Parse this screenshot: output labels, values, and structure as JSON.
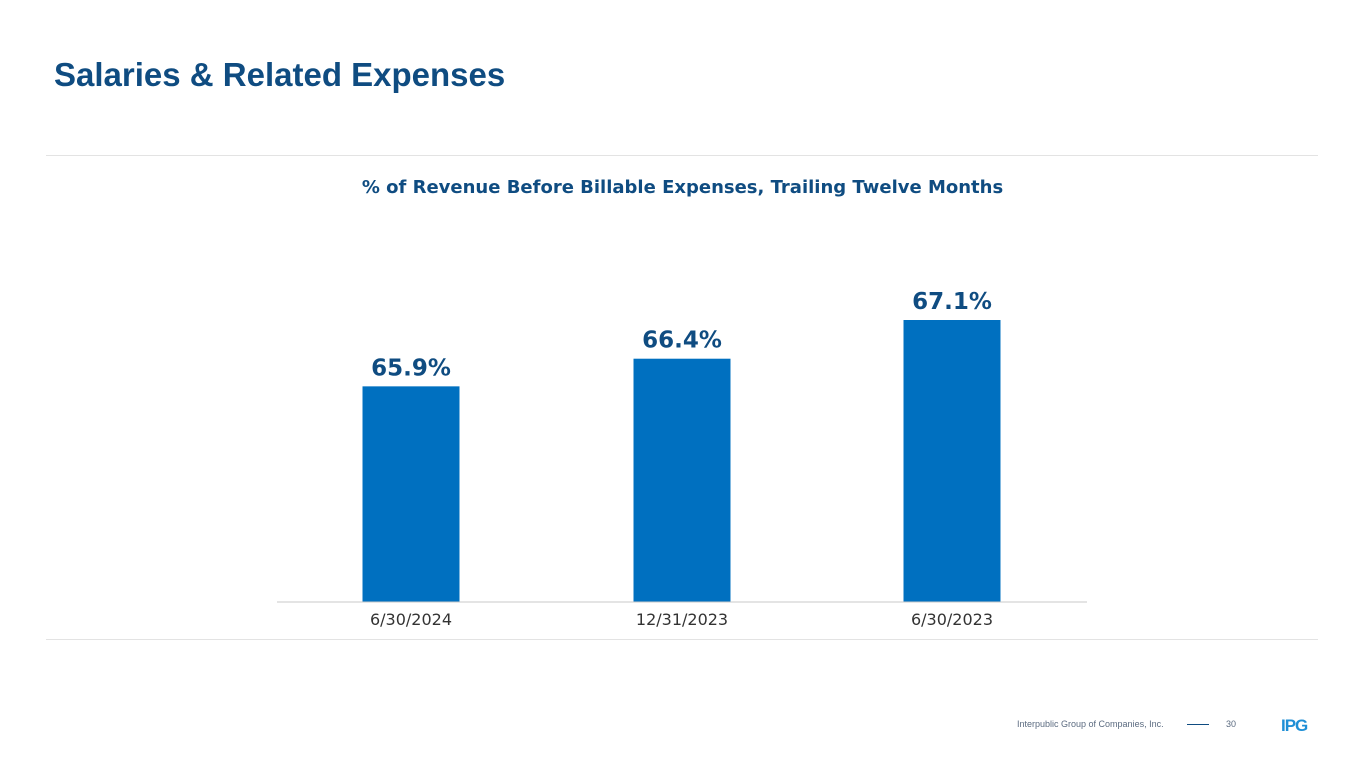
{
  "slide": {
    "title": "Salaries & Related Expenses"
  },
  "chart_data": {
    "type": "bar",
    "title": "% of Revenue Before Billable Expenses, Trailing Twelve Months",
    "categories": [
      "6/30/2024",
      "12/31/2023",
      "6/30/2023"
    ],
    "values": [
      65.9,
      66.4,
      67.1
    ],
    "value_labels": [
      "65.9%",
      "66.4%",
      "67.1%"
    ],
    "xlabel": "",
    "ylabel": "",
    "ylim": [
      62.0,
      67.5
    ],
    "grid": false,
    "bar_color": "#0070c0"
  },
  "footer": {
    "company": "Interpublic Group of Companies, Inc.",
    "page_number": "30",
    "logo_text": "IPG",
    "logo_color": "#1f8fd6"
  }
}
